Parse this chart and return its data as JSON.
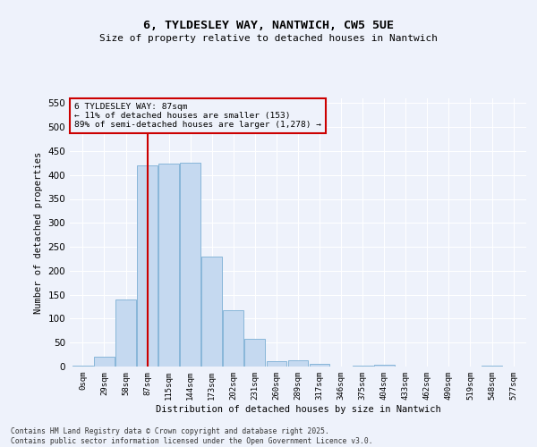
{
  "title": "6, TYLDESLEY WAY, NANTWICH, CW5 5UE",
  "subtitle": "Size of property relative to detached houses in Nantwich",
  "xlabel": "Distribution of detached houses by size in Nantwich",
  "ylabel": "Number of detached properties",
  "bar_color": "#c5d9f0",
  "bar_edge_color": "#7bafd4",
  "background_color": "#eef2fb",
  "grid_color": "#ffffff",
  "categories": [
    "0sqm",
    "29sqm",
    "58sqm",
    "87sqm",
    "115sqm",
    "144sqm",
    "173sqm",
    "202sqm",
    "231sqm",
    "260sqm",
    "289sqm",
    "317sqm",
    "346sqm",
    "375sqm",
    "404sqm",
    "433sqm",
    "462sqm",
    "490sqm",
    "519sqm",
    "548sqm",
    "577sqm"
  ],
  "values": [
    2,
    20,
    140,
    420,
    423,
    425,
    230,
    117,
    58,
    12,
    14,
    6,
    0,
    1,
    4,
    0,
    0,
    0,
    0,
    2,
    0
  ],
  "property_size_label": "87sqm",
  "property_label": "6 TYLDESLEY WAY: 87sqm",
  "annotation_line1": "← 11% of detached houses are smaller (153)",
  "annotation_line2": "89% of semi-detached houses are larger (1,278) →",
  "vline_color": "#cc0000",
  "annotation_box_edge_color": "#cc0000",
  "ylim": [
    0,
    560
  ],
  "yticks": [
    0,
    50,
    100,
    150,
    200,
    250,
    300,
    350,
    400,
    450,
    500,
    550
  ],
  "footer_line1": "Contains HM Land Registry data © Crown copyright and database right 2025.",
  "footer_line2": "Contains public sector information licensed under the Open Government Licence v3.0."
}
